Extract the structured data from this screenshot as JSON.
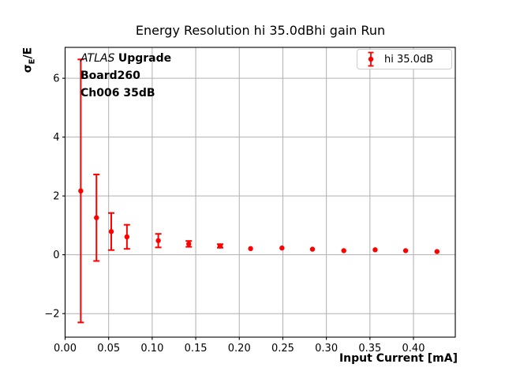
{
  "figure": {
    "background": "#ffffff"
  },
  "chart_data": {
    "type": "scatter",
    "title": "Energy Resolution hi 35.0dBhi gain Run",
    "xlabel": "Input Current [mA]",
    "ylabel": "σE/E",
    "ylabel_parts": {
      "sigma": "σ",
      "subscript": "E",
      "rest": "/E"
    },
    "xlim": [
      0,
      0.448
    ],
    "ylim": [
      -2.8,
      7.05
    ],
    "grid": true,
    "grid_color": "#b0b0b0",
    "axis_color": "#000000",
    "xticks": {
      "values": [
        0,
        0.05,
        0.1,
        0.15,
        0.2,
        0.25,
        0.3,
        0.35,
        0.4
      ],
      "labels": [
        "0.00",
        "0.05",
        "0.10",
        "0.15",
        "0.20",
        "0.25",
        "0.30",
        "0.35",
        "0.40"
      ]
    },
    "yticks": {
      "values": [
        -2,
        0,
        2,
        4,
        6
      ],
      "labels": [
        "−2",
        "0",
        "2",
        "4",
        "6"
      ]
    },
    "legend": {
      "label": "hi 35.0dB",
      "location": "upper right"
    },
    "series": [
      {
        "name": "hi 35.0dB",
        "color": "#ff0000",
        "marker": "circle",
        "points": [
          [
            0.018,
            2.17,
            4.47
          ],
          [
            0.036,
            1.26,
            1.47
          ],
          [
            0.053,
            0.79,
            0.63
          ],
          [
            0.071,
            0.61,
            0.41
          ],
          [
            0.107,
            0.48,
            0.23
          ],
          [
            0.142,
            0.37,
            0.1
          ],
          [
            0.178,
            0.3,
            0.06
          ],
          [
            0.213,
            0.21,
            0.03
          ],
          [
            0.249,
            0.23,
            0.03
          ],
          [
            0.284,
            0.19,
            0.03
          ],
          [
            0.32,
            0.14,
            0.02
          ],
          [
            0.356,
            0.17,
            0.02
          ],
          [
            0.391,
            0.14,
            0.02
          ],
          [
            0.427,
            0.11,
            0.02
          ]
        ]
      }
    ]
  },
  "annotation": {
    "line1_italic": "ATLAS",
    "line1_bold": "Upgrade",
    "line2": "Board260",
    "line3": "Ch006 35dB"
  }
}
